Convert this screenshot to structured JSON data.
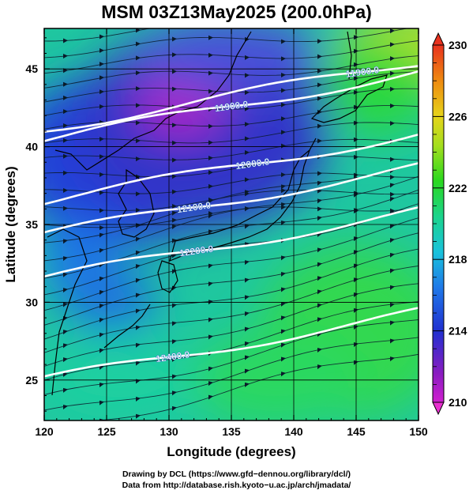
{
  "chart_data": {
    "type": "heatmap",
    "title": "MSM 03Z13May2025 (200.0hPa)",
    "xlabel": "Longitude (degrees)",
    "ylabel": "Latitude  (degrees)",
    "xlim": [
      120,
      150
    ],
    "ylim": [
      22.4,
      47.6
    ],
    "x_ticks": [
      "120",
      "125",
      "130",
      "135",
      "140",
      "145",
      "150"
    ],
    "y_ticks": [
      "25",
      "30",
      "35",
      "40",
      "45"
    ],
    "grid": true,
    "shaded_field": {
      "colorbar_ticks": [
        "210",
        "214",
        "218",
        "222",
        "226",
        "230"
      ],
      "range": [
        210,
        230
      ],
      "colors": [
        "#d020d0",
        "#8a1cc0",
        "#2030d0",
        "#1f78e8",
        "#19c2dc",
        "#1bd48c",
        "#2ad81e",
        "#a6de1e",
        "#e6d41a",
        "#ee8a10",
        "#e8321e"
      ]
    },
    "contours": [
      {
        "label": "11900.0",
        "label_lon": 135.0,
        "label_lat": 42.6
      },
      {
        "label": "11900.0",
        "label_lon": 145.5,
        "label_lat": 44.8
      },
      {
        "label": "12000.0",
        "label_lon": 136.7,
        "label_lat": 38.9
      },
      {
        "label": "12100.0",
        "label_lon": 132.0,
        "label_lat": 36.1
      },
      {
        "label": "12200.0",
        "label_lon": 132.2,
        "label_lat": 33.3
      },
      {
        "label": "12400.0",
        "label_lon": 130.3,
        "label_lat": 26.5
      }
    ],
    "wind_field": "streamlines"
  },
  "credits": {
    "line1": "Drawing by DCL (https://www.gfd−dennou.org/library/dcl/)",
    "line2": "Data from http://database.rish.kyoto−u.ac.jp/arch/jmadata/"
  }
}
